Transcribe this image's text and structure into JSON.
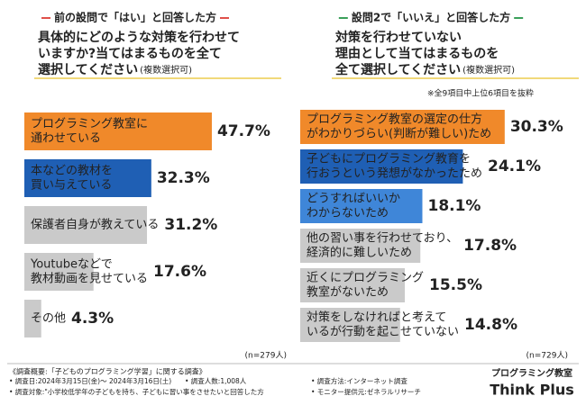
{
  "chart_data": [
    {
      "type": "bar",
      "orientation": "horizontal",
      "group_label": "前の設問で「はい」と回答した方",
      "group_color": "#e0504a",
      "title": [
        "具体的にどのような対策を行わせて",
        "いますか?当てはまるものを全て",
        "選択してください"
      ],
      "title_note": "(複数選択可)",
      "categories": [
        [
          "プログラミング教室に",
          "通わせている"
        ],
        [
          "本などの教材を",
          "買い与えている"
        ],
        [
          "保護者自身が教えている"
        ],
        [
          "Youtubeなどで",
          "教材動画を見せている"
        ],
        [
          "その他"
        ]
      ],
      "values": [
        47.7,
        32.3,
        31.2,
        17.6,
        4.3
      ],
      "value_labels": [
        "47.7%",
        "32.3%",
        "31.2%",
        "17.6%",
        "4.3%"
      ],
      "colors": [
        "#f0892a",
        "#1f5fb4",
        "#cacaca",
        "#cacaca",
        "#cacaca"
      ],
      "label_colors": [
        "#f0892a",
        "#1f5fb4",
        "#444444",
        "#444444",
        "#444444"
      ],
      "xlim": [
        0,
        50
      ],
      "sample_note": "(n=279人)"
    },
    {
      "type": "bar",
      "orientation": "horizontal",
      "group_label": "設問2で「いいえ」と回答した方",
      "group_color": "#3aa05a",
      "title": [
        "対策を行わせていない",
        "理由として当てはまるものを",
        "全て選択してください"
      ],
      "title_note": "(複数選択可)",
      "note": "※全9項目中上位6項目を抜粋",
      "categories": [
        [
          "プログラミング教室の選定の仕方",
          "がわかりづらい(判断が難しい)ため"
        ],
        [
          "子どもにプログラミング教育を",
          "行おうという発想がなかったため"
        ],
        [
          "どうすればいいか",
          "わからないため"
        ],
        [
          "他の習い事を行わせており、",
          "経済的に難しいため"
        ],
        [
          "近くにプログラミング",
          "教室がないため"
        ],
        [
          "対策をしなければと考えて",
          "いるが行動を起こせていない"
        ]
      ],
      "values": [
        30.3,
        24.1,
        18.1,
        17.8,
        15.5,
        14.8
      ],
      "value_labels": [
        "30.3%",
        "24.1%",
        "18.1%",
        "17.8%",
        "15.5%",
        "14.8%"
      ],
      "colors": [
        "#f0892a",
        "#1f5fb4",
        "#3f86d8",
        "#cacaca",
        "#cacaca",
        "#cacaca"
      ],
      "label_colors": [
        "#f0892a",
        "#1f5fb4",
        "#1f5fb4",
        "#444444",
        "#444444",
        "#444444"
      ],
      "xlim": [
        0,
        35
      ],
      "sample_note": "(n=729人)"
    }
  ],
  "footer": {
    "heading": "《調査概要:「子どものプログラミング学習」に関する調査》",
    "items": [
      "• 調査日:2024年3月15日(金)〜 2024年3月16日(土)",
      "• 調査人数:1,008人",
      "• 調査方法:インターネット調査",
      "• 調査対象:\"小学校低学年の子どもを持ち、子どもに習い事をさせたいと回答した方",
      "• モニター提供元:ゼネラルリサーチ"
    ]
  },
  "logo": {
    "top": "プログラミング教室",
    "main": "Think Plus"
  }
}
